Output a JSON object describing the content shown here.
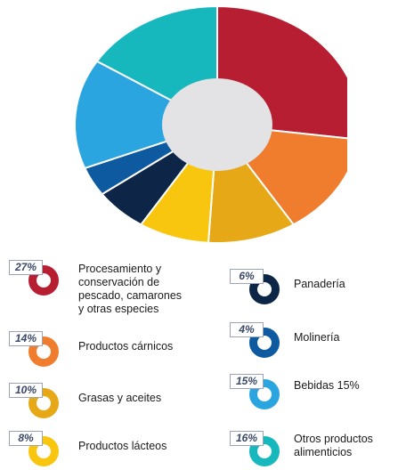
{
  "chart_data": {
    "type": "pie",
    "title": "",
    "slices": [
      {
        "label": "Procesamiento y conservación de pescado, camarones y otras especies",
        "value": 27,
        "color": "#b81e32"
      },
      {
        "label": "Productos cárnicos",
        "value": 14,
        "color": "#f07d2e"
      },
      {
        "label": "Grasas y aceites",
        "value": 10,
        "color": "#e6a817"
      },
      {
        "label": "Productos lácteos",
        "value": 8,
        "color": "#f8c50f"
      },
      {
        "label": "Panadería",
        "value": 6,
        "color": "#0d2546"
      },
      {
        "label": "Molinería",
        "value": 4,
        "color": "#0d5aa0"
      },
      {
        "label": "Bebidas 15%",
        "value": 15,
        "color": "#2aa5e0"
      },
      {
        "label": "Otros productos alimenticios",
        "value": 16,
        "color": "#17b8bd"
      }
    ]
  },
  "legend": {
    "items": [
      {
        "pct": "27%",
        "label_lines": [
          "Procesamiento y",
          "conservación de",
          "pescado, camarones",
          "y otras especies"
        ],
        "color": "#b81e32"
      },
      {
        "pct": "14%",
        "label_lines": [
          "Productos cárnicos"
        ],
        "color": "#f07d2e"
      },
      {
        "pct": "10%",
        "label_lines": [
          "Grasas y aceites"
        ],
        "color": "#e6a817"
      },
      {
        "pct": "8%",
        "label_lines": [
          "Productos lácteos"
        ],
        "color": "#f8c50f"
      },
      {
        "pct": "6%",
        "label_lines": [
          "Panadería"
        ],
        "color": "#0d2546"
      },
      {
        "pct": "4%",
        "label_lines": [
          "Molinería"
        ],
        "color": "#0d5aa0"
      },
      {
        "pct": "15%",
        "label_lines": [
          "Bebidas 15%"
        ],
        "color": "#2aa5e0"
      },
      {
        "pct": "16%",
        "label_lines": [
          "Otros productos",
          "alimenticios"
        ],
        "color": "#17b8bd"
      }
    ]
  },
  "center_color": "#e3e3e5"
}
